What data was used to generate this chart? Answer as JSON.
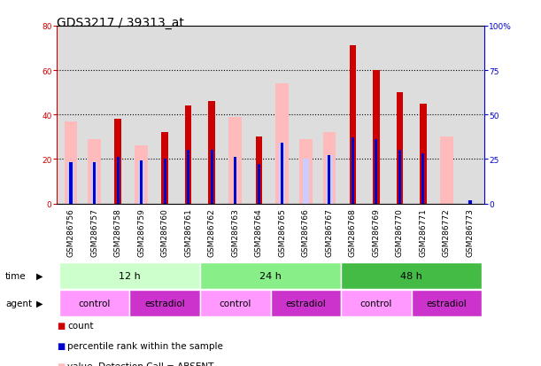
{
  "title": "GDS3217 / 39313_at",
  "samples": [
    "GSM286756",
    "GSM286757",
    "GSM286758",
    "GSM286759",
    "GSM286760",
    "GSM286761",
    "GSM286762",
    "GSM286763",
    "GSM286764",
    "GSM286765",
    "GSM286766",
    "GSM286767",
    "GSM286768",
    "GSM286769",
    "GSM286770",
    "GSM286771",
    "GSM286772",
    "GSM286773"
  ],
  "count_values": [
    0,
    0,
    38,
    0,
    32,
    44,
    46,
    0,
    30,
    0,
    0,
    0,
    71,
    60,
    50,
    45,
    0,
    0
  ],
  "rank_values": [
    23,
    23,
    26,
    24,
    25,
    30,
    30,
    26,
    22,
    34,
    0,
    27,
    37,
    36,
    30,
    28,
    0,
    2
  ],
  "absent_value": [
    37,
    29,
    0,
    26,
    0,
    0,
    0,
    39,
    0,
    54,
    29,
    32,
    0,
    0,
    0,
    0,
    30,
    0
  ],
  "absent_rank": [
    23,
    23,
    0,
    24,
    0,
    0,
    25,
    0,
    0,
    34,
    25,
    27,
    0,
    0,
    0,
    0,
    0,
    2
  ],
  "time_groups": [
    {
      "label": "12 h",
      "start": 0,
      "end": 5
    },
    {
      "label": "24 h",
      "start": 6,
      "end": 11
    },
    {
      "label": "48 h",
      "start": 12,
      "end": 17
    }
  ],
  "time_colors": [
    "#ccffcc",
    "#88ee88",
    "#44bb44"
  ],
  "agent_groups": [
    {
      "label": "control",
      "start": 0,
      "end": 2
    },
    {
      "label": "estradiol",
      "start": 3,
      "end": 5
    },
    {
      "label": "control",
      "start": 6,
      "end": 8
    },
    {
      "label": "estradiol",
      "start": 9,
      "end": 11
    },
    {
      "label": "control",
      "start": 12,
      "end": 14
    },
    {
      "label": "estradiol",
      "start": 15,
      "end": 17
    }
  ],
  "agent_colors": {
    "control": "#ff99ff",
    "estradiol": "#cc33cc"
  },
  "ylim_left": [
    0,
    80
  ],
  "ylim_right": [
    0,
    100
  ],
  "yticks_left": [
    0,
    20,
    40,
    60,
    80
  ],
  "yticks_right": [
    0,
    25,
    50,
    75,
    100
  ],
  "color_count": "#cc0000",
  "color_rank": "#0000cc",
  "color_absent_val": "#ffbbbb",
  "color_absent_rank": "#ccccff",
  "bg_color": "#ffffff",
  "plot_bg": "#dddddd",
  "title_fontsize": 10,
  "tick_fontsize": 6.5,
  "row_label_fontsize": 7.5,
  "legend_fontsize": 7.5
}
